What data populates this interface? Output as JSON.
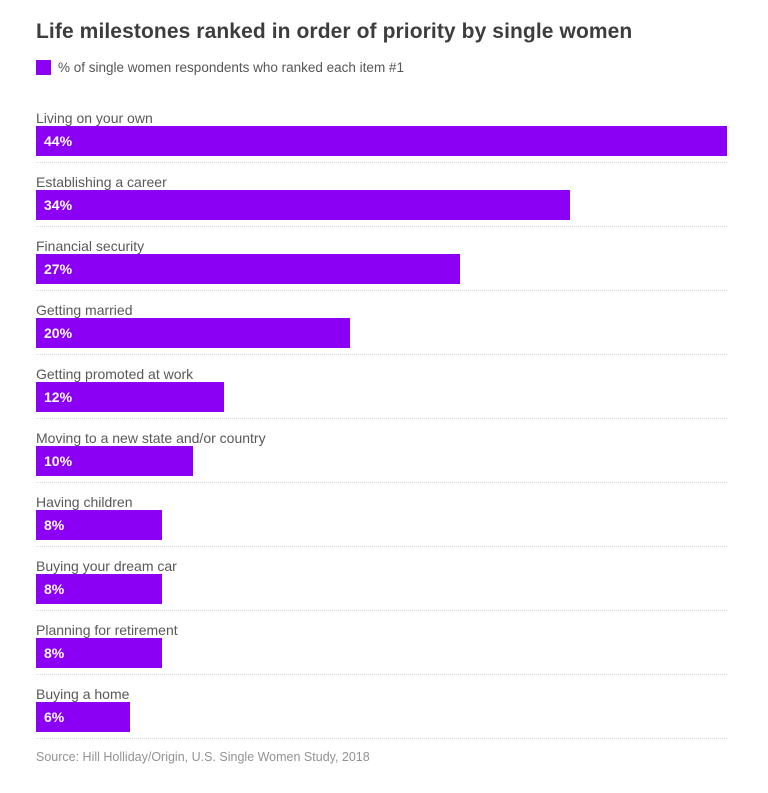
{
  "page": {
    "title": "Life milestones ranked in order of priority by single women",
    "legend": {
      "label": "% of single women respondents who ranked each item #1"
    },
    "source": "Source: Hill Holliday/Origin, U.S. Single Women Study, 2018"
  },
  "colors": {
    "bar": "#8B00F5",
    "title_text": "#3d3d3d",
    "category_text": "#585858",
    "value_text": "#ffffff",
    "source_text": "#939393",
    "separator": "#d8d8d8"
  },
  "chart_data": {
    "type": "bar",
    "orientation": "horizontal",
    "title": "Life milestones ranked in order of priority by single women",
    "legend_entries": [
      "% of single women respondents who ranked each item #1"
    ],
    "categories": [
      "Living on your own",
      "Establishing a career",
      "Financial security",
      "Getting married",
      "Getting promoted at work",
      "Moving to a new state and/or country",
      "Having children",
      "Buying your dream car",
      "Planning for retirement",
      "Buying a home"
    ],
    "values": [
      44,
      34,
      27,
      20,
      12,
      10,
      8,
      8,
      8,
      6
    ],
    "value_labels": [
      "44%",
      "34%",
      "27%",
      "20%",
      "12%",
      "10%",
      "8%",
      "8%",
      "8%",
      "6%"
    ],
    "value_suffix": "%",
    "xlim": [
      0,
      44
    ],
    "grid": false,
    "bar_value_labels_inside": true,
    "separator_style": "dotted",
    "source": "Source: Hill Holliday/Origin, U.S. Single Women Study, 2018"
  }
}
